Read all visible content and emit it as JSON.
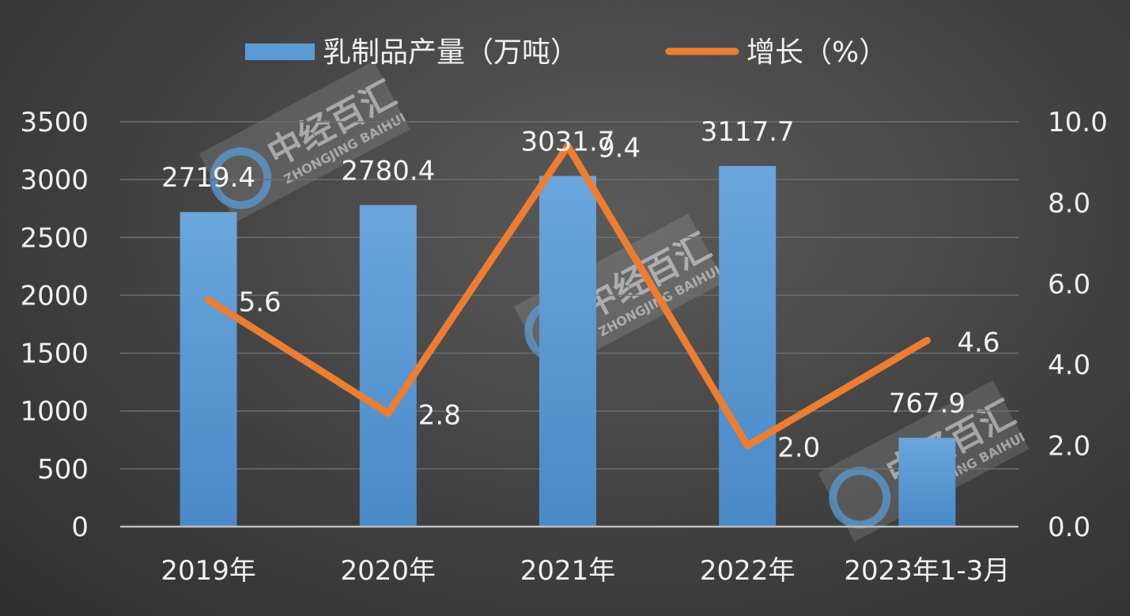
{
  "chart_data": {
    "type": "bar",
    "categories": [
      "2019年",
      "2020年",
      "2021年",
      "2022年",
      "2023年1-3月"
    ],
    "series": [
      {
        "name": "乳制品产量（万吨）",
        "type": "bar",
        "axis": "left",
        "color": "#5b9bd5",
        "values": [
          2719.4,
          2780.4,
          3031.7,
          3117.7,
          767.9
        ],
        "labels": [
          "2719.4",
          "2780.4",
          "3031.7",
          "3117.7",
          "767.9"
        ]
      },
      {
        "name": "增长（%）",
        "type": "line",
        "axis": "right",
        "color": "#ed7d31",
        "values": [
          5.6,
          2.8,
          9.4,
          2.0,
          4.6
        ],
        "labels": [
          "5.6",
          "2.8",
          "9.4",
          "2.0",
          "4.6"
        ]
      }
    ],
    "y_left": {
      "min": 0,
      "max": 3500,
      "ticks": [
        "0",
        "500",
        "1000",
        "1500",
        "2000",
        "2500",
        "3000",
        "3500"
      ]
    },
    "y_right": {
      "min": 0,
      "max": 10,
      "ticks": [
        "0.0",
        "2.0",
        "4.0",
        "6.0",
        "8.0",
        "10.0"
      ]
    },
    "grid": true,
    "legend": "top-center"
  },
  "watermark": {
    "cn": "中经百汇",
    "en": "ZHONGJING BAIHUI",
    "color": "#5b9bd5"
  }
}
